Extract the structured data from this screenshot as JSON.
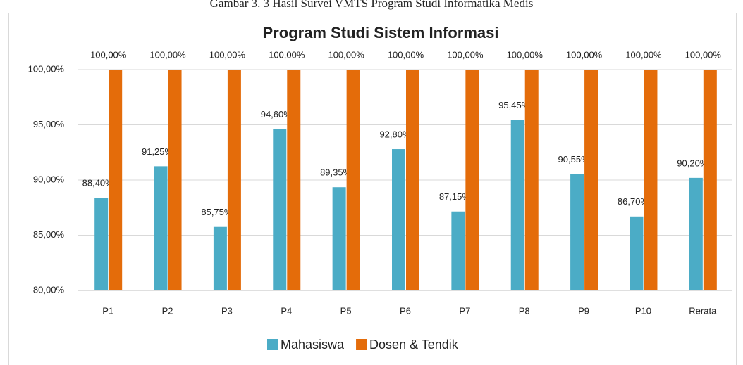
{
  "caption": "Gambar 3. 3 Hasil Survei VMTS Program Studi Informatika Medis",
  "chart_data": {
    "type": "bar",
    "title": "Program Studi Sistem Informasi",
    "categories": [
      "P1",
      "P2",
      "P3",
      "P4",
      "P5",
      "P6",
      "P7",
      "P8",
      "P9",
      "P10",
      "Rerata"
    ],
    "series": [
      {
        "name": "Mahasiswa",
        "color": "#4bacc6",
        "values": [
          88.4,
          91.25,
          85.75,
          94.6,
          89.35,
          92.8,
          87.15,
          95.45,
          90.55,
          86.7,
          90.2
        ],
        "value_labels": [
          "88,40%",
          "91,25%",
          "85,75%",
          "94,60%",
          "89,35%",
          "92,80%",
          "87,15%",
          "95,45%",
          "90,55%",
          "86,70%",
          "90,20%"
        ]
      },
      {
        "name": "Dosen & Tendik",
        "color": "#e46c0a",
        "values": [
          100,
          100,
          100,
          100,
          100,
          100,
          100,
          100,
          100,
          100,
          100
        ],
        "value_labels": [
          "100,00%",
          "100,00%",
          "100,00%",
          "100,00%",
          "100,00%",
          "100,00%",
          "100,00%",
          "100,00%",
          "100,00%",
          "100,00%",
          "100,00%"
        ]
      }
    ],
    "ylim": [
      80,
      100
    ],
    "yticks": [
      {
        "value": 80,
        "label": "80,00%"
      },
      {
        "value": 85,
        "label": "85,00%"
      },
      {
        "value": 90,
        "label": "90,00%"
      },
      {
        "value": 95,
        "label": "95,00%"
      },
      {
        "value": 100,
        "label": "100,00%"
      }
    ],
    "grid": true,
    "legend": "bottom"
  }
}
